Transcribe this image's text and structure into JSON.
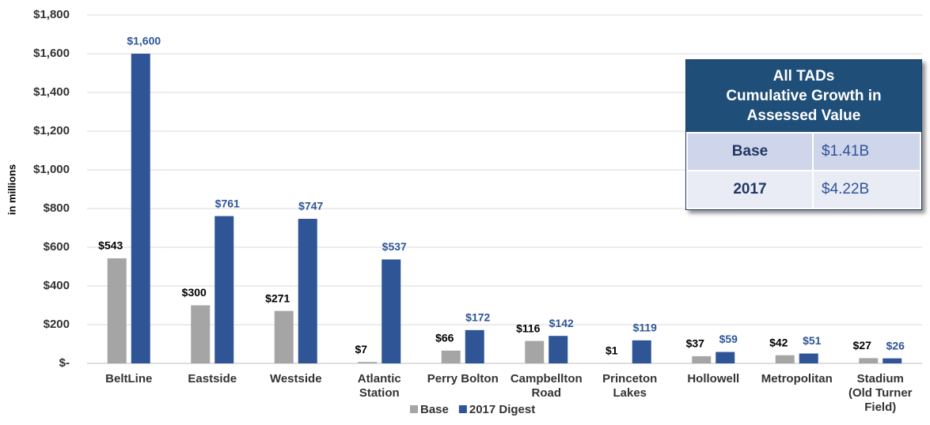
{
  "chart_data": {
    "type": "bar",
    "y_axis_label": "in millions",
    "categories": [
      "BeltLine",
      "Eastside",
      "Westside",
      "Atlantic\nStation",
      "Perry Bolton",
      "Campbellton\nRoad",
      "Princeton\nLakes",
      "Hollowell",
      "Metropolitan",
      "Stadium\n(Old Turner\nField)"
    ],
    "series": [
      {
        "name": "Base",
        "color": "#a5a5a5",
        "label_color": "#000000",
        "values": [
          543,
          300,
          271,
          7,
          66,
          116,
          1,
          37,
          42,
          27
        ],
        "value_labels": [
          "$543",
          "$300",
          "$271",
          "$7",
          "$66",
          "$116",
          "$1",
          "$37",
          "$42",
          "$27"
        ]
      },
      {
        "name": "2017 Digest",
        "color": "#2f5597",
        "label_color": "#2f5597",
        "values": [
          1600,
          761,
          747,
          537,
          172,
          142,
          119,
          59,
          51,
          26
        ],
        "value_labels": [
          "$1,600",
          "$761",
          "$747",
          "$537",
          "$172",
          "$142",
          "$119",
          "$59",
          "$51",
          "$26"
        ]
      }
    ],
    "ylim": [
      0,
      1800
    ],
    "yticks": [
      {
        "value": 0,
        "label": "$-"
      },
      {
        "value": 200,
        "label": "$200"
      },
      {
        "value": 400,
        "label": "$400"
      },
      {
        "value": 600,
        "label": "$600"
      },
      {
        "value": 800,
        "label": "$800"
      },
      {
        "value": 1000,
        "label": "$1,000"
      },
      {
        "value": 1200,
        "label": "$1,200"
      },
      {
        "value": 1400,
        "label": "$1,400"
      },
      {
        "value": 1600,
        "label": "$1,600"
      },
      {
        "value": 1800,
        "label": "$1,800"
      }
    ],
    "grid": true,
    "legend": "bottom"
  },
  "inset_table": {
    "title": "All TADs\nCumulative Growth in\nAssessed Value",
    "rows": [
      [
        "Base",
        "$1.41B"
      ],
      [
        "2017",
        "$4.22B"
      ]
    ]
  }
}
